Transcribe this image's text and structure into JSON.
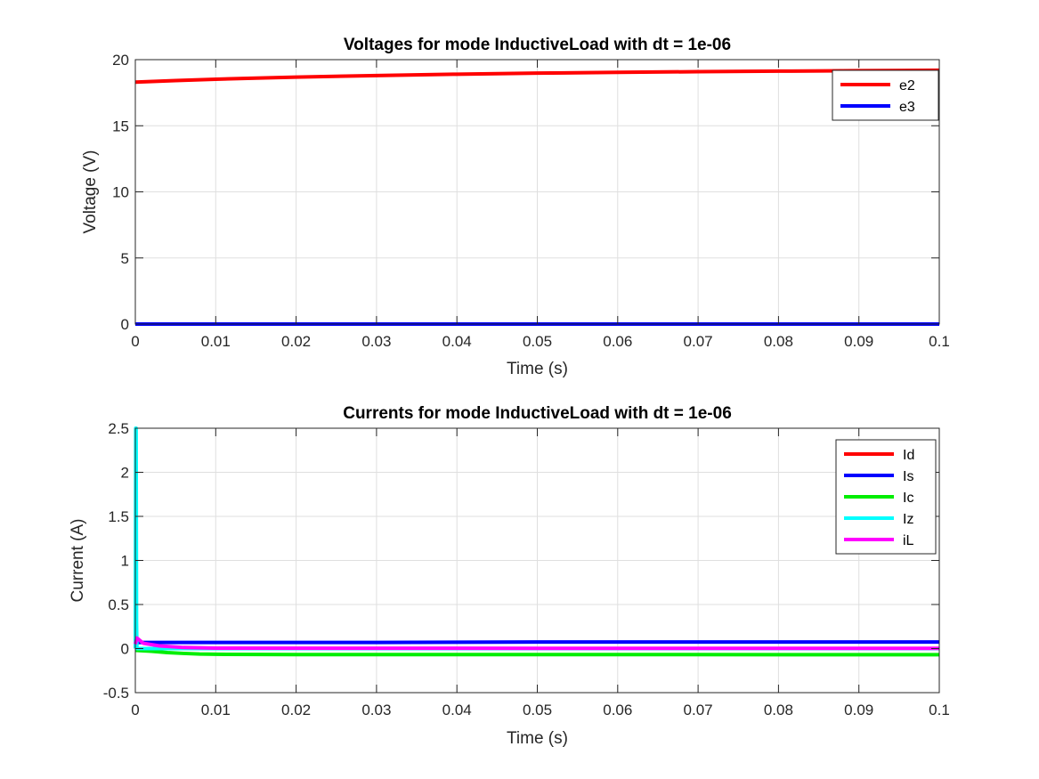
{
  "chart_data": [
    {
      "type": "line",
      "title": "Voltages for mode InductiveLoad with dt = 1e-06",
      "xlabel": "Time (s)",
      "ylabel": "Voltage (V)",
      "xlim": [
        0,
        0.1
      ],
      "ylim": [
        0,
        20
      ],
      "xticks": [
        0,
        0.01,
        0.02,
        0.03,
        0.04,
        0.05,
        0.06,
        0.07,
        0.08,
        0.09,
        0.1
      ],
      "xtick_labels": [
        "0",
        "0.01",
        "0.02",
        "0.03",
        "0.04",
        "0.05",
        "0.06",
        "0.07",
        "0.08",
        "0.09",
        "0.1"
      ],
      "yticks": [
        0,
        5,
        10,
        15,
        20
      ],
      "ytick_labels": [
        "0",
        "5",
        "10",
        "15",
        "20"
      ],
      "grid": true,
      "legend_position": "top-right",
      "series": [
        {
          "name": "e2",
          "color": "#ff0000",
          "x": [
            0,
            0.005,
            0.01,
            0.015,
            0.02,
            0.03,
            0.04,
            0.05,
            0.06,
            0.07,
            0.08,
            0.09,
            0.1
          ],
          "y": [
            18.3,
            18.42,
            18.52,
            18.6,
            18.68,
            18.8,
            18.9,
            18.98,
            19.04,
            19.09,
            19.13,
            19.17,
            19.2
          ]
        },
        {
          "name": "e3",
          "color": "#0000ff",
          "x": [
            0,
            0.1
          ],
          "y": [
            0,
            0
          ]
        }
      ]
    },
    {
      "type": "line",
      "title": "Currents for mode InductiveLoad with dt = 1e-06",
      "xlabel": "Time (s)",
      "ylabel": "Current (A)",
      "xlim": [
        0,
        0.1
      ],
      "ylim": [
        -0.5,
        2.5
      ],
      "xticks": [
        0,
        0.01,
        0.02,
        0.03,
        0.04,
        0.05,
        0.06,
        0.07,
        0.08,
        0.09,
        0.1
      ],
      "xtick_labels": [
        "0",
        "0.01",
        "0.02",
        "0.03",
        "0.04",
        "0.05",
        "0.06",
        "0.07",
        "0.08",
        "0.09",
        "0.1"
      ],
      "yticks": [
        -0.5,
        0,
        0.5,
        1,
        1.5,
        2,
        2.5
      ],
      "ytick_labels": [
        "-0.5",
        "0",
        "0.5",
        "1",
        "1.5",
        "2",
        "2.5"
      ],
      "grid": true,
      "legend_position": "top-right",
      "series": [
        {
          "name": "Id",
          "color": "#ff0000",
          "x": [
            0,
            0.1
          ],
          "y": [
            0,
            0
          ]
        },
        {
          "name": "Is",
          "color": "#0000ff",
          "x": [
            0,
            0.0005,
            0.002,
            0.01,
            0.03,
            0.05,
            0.07,
            0.1
          ],
          "y": [
            0.06,
            0.07,
            0.07,
            0.07,
            0.07,
            0.075,
            0.075,
            0.075
          ]
        },
        {
          "name": "Ic",
          "color": "#00ee00",
          "x": [
            0,
            0.002,
            0.004,
            0.006,
            0.008,
            0.01,
            0.02,
            0.05,
            0.1
          ],
          "y": [
            -0.02,
            -0.03,
            -0.045,
            -0.055,
            -0.062,
            -0.065,
            -0.068,
            -0.068,
            -0.07
          ]
        },
        {
          "name": "Iz",
          "color": "#00ffff",
          "x": [
            0,
            5e-05,
            0.0001,
            0.00015,
            0.0002,
            0.1
          ],
          "y": [
            0,
            2.5,
            2.5,
            0.3,
            0,
            0
          ]
        },
        {
          "name": "iL",
          "color": "#ff00ff",
          "x": [
            0,
            0.0002,
            0.001,
            0.003,
            0.006,
            0.01,
            0.05,
            0.1
          ],
          "y": [
            0.05,
            0.12,
            0.06,
            0.03,
            0.012,
            0.005,
            0.003,
            0.003
          ]
        }
      ]
    }
  ]
}
